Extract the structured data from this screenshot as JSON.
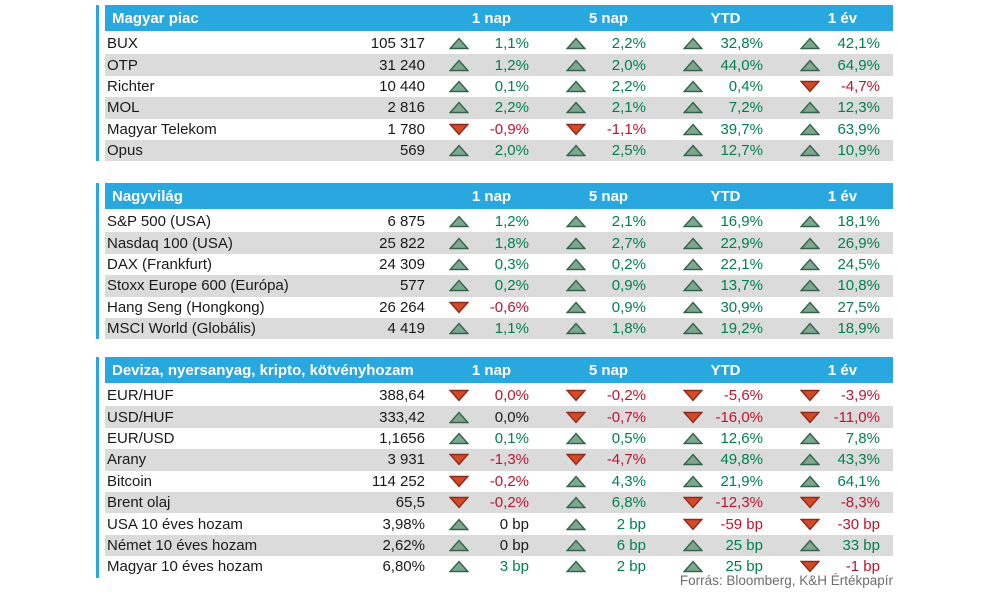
{
  "columns": [
    "1 nap",
    "5 nap",
    "YTD",
    "1 év"
  ],
  "footer": {
    "source": "Forrás: Bloomberg, K&H Értékpapír"
  },
  "colors": {
    "header_bg": "#29A8DF",
    "row_alt_bg": "#DBDBDB",
    "text": "#1A1A1A",
    "positive": "#00814F",
    "negative": "#C2122E",
    "neutral": "#1A1A1A",
    "up_arrow_fill": "#7FA78F",
    "up_arrow_stroke": "#34654C",
    "down_arrow_fill": "#D14B28",
    "down_arrow_stroke": "#93291A"
  },
  "sections": [
    {
      "title": "Magyar piac",
      "rows": [
        {
          "name": "BUX",
          "value": "105 317",
          "changes": [
            {
              "dir": "up",
              "text": "1,1%",
              "tone": "positive"
            },
            {
              "dir": "up",
              "text": "2,2%",
              "tone": "positive"
            },
            {
              "dir": "up",
              "text": "32,8%",
              "tone": "positive"
            },
            {
              "dir": "up",
              "text": "42,1%",
              "tone": "positive"
            }
          ]
        },
        {
          "name": "OTP",
          "value": "31 240",
          "changes": [
            {
              "dir": "up",
              "text": "1,2%",
              "tone": "positive"
            },
            {
              "dir": "up",
              "text": "2,0%",
              "tone": "positive"
            },
            {
              "dir": "up",
              "text": "44,0%",
              "tone": "positive"
            },
            {
              "dir": "up",
              "text": "64,9%",
              "tone": "positive"
            }
          ]
        },
        {
          "name": "Richter",
          "value": "10 440",
          "changes": [
            {
              "dir": "up",
              "text": "0,1%",
              "tone": "positive"
            },
            {
              "dir": "up",
              "text": "2,2%",
              "tone": "positive"
            },
            {
              "dir": "up",
              "text": "0,4%",
              "tone": "positive"
            },
            {
              "dir": "down",
              "text": "-4,7%",
              "tone": "negative"
            }
          ]
        },
        {
          "name": "MOL",
          "value": "2 816",
          "changes": [
            {
              "dir": "up",
              "text": "2,2%",
              "tone": "positive"
            },
            {
              "dir": "up",
              "text": "2,1%",
              "tone": "positive"
            },
            {
              "dir": "up",
              "text": "7,2%",
              "tone": "positive"
            },
            {
              "dir": "up",
              "text": "12,3%",
              "tone": "positive"
            }
          ]
        },
        {
          "name": "Magyar Telekom",
          "value": "1 780",
          "changes": [
            {
              "dir": "down",
              "text": "-0,9%",
              "tone": "negative"
            },
            {
              "dir": "down",
              "text": "-1,1%",
              "tone": "negative"
            },
            {
              "dir": "up",
              "text": "39,7%",
              "tone": "positive"
            },
            {
              "dir": "up",
              "text": "63,9%",
              "tone": "positive"
            }
          ]
        },
        {
          "name": "Opus",
          "value": "569",
          "changes": [
            {
              "dir": "up",
              "text": "2,0%",
              "tone": "positive"
            },
            {
              "dir": "up",
              "text": "2,5%",
              "tone": "positive"
            },
            {
              "dir": "up",
              "text": "12,7%",
              "tone": "positive"
            },
            {
              "dir": "up",
              "text": "10,9%",
              "tone": "positive"
            }
          ]
        }
      ]
    },
    {
      "title": "Nagyvilág",
      "rows": [
        {
          "name": "S&P 500 (USA)",
          "value": "6 875",
          "changes": [
            {
              "dir": "up",
              "text": "1,2%",
              "tone": "positive"
            },
            {
              "dir": "up",
              "text": "2,1%",
              "tone": "positive"
            },
            {
              "dir": "up",
              "text": "16,9%",
              "tone": "positive"
            },
            {
              "dir": "up",
              "text": "18,1%",
              "tone": "positive"
            }
          ]
        },
        {
          "name": "Nasdaq 100 (USA)",
          "value": "25 822",
          "changes": [
            {
              "dir": "up",
              "text": "1,8%",
              "tone": "positive"
            },
            {
              "dir": "up",
              "text": "2,7%",
              "tone": "positive"
            },
            {
              "dir": "up",
              "text": "22,9%",
              "tone": "positive"
            },
            {
              "dir": "up",
              "text": "26,9%",
              "tone": "positive"
            }
          ]
        },
        {
          "name": "DAX (Frankfurt)",
          "value": "24 309",
          "changes": [
            {
              "dir": "up",
              "text": "0,3%",
              "tone": "positive"
            },
            {
              "dir": "up",
              "text": "0,2%",
              "tone": "positive"
            },
            {
              "dir": "up",
              "text": "22,1%",
              "tone": "positive"
            },
            {
              "dir": "up",
              "text": "24,5%",
              "tone": "positive"
            }
          ]
        },
        {
          "name": "Stoxx Europe 600 (Európa)",
          "value": "577",
          "changes": [
            {
              "dir": "up",
              "text": "0,2%",
              "tone": "positive"
            },
            {
              "dir": "up",
              "text": "0,9%",
              "tone": "positive"
            },
            {
              "dir": "up",
              "text": "13,7%",
              "tone": "positive"
            },
            {
              "dir": "up",
              "text": "10,8%",
              "tone": "positive"
            }
          ]
        },
        {
          "name": "Hang Seng (Hongkong)",
          "value": "26 264",
          "changes": [
            {
              "dir": "down",
              "text": "-0,6%",
              "tone": "negative"
            },
            {
              "dir": "up",
              "text": "0,9%",
              "tone": "positive"
            },
            {
              "dir": "up",
              "text": "30,9%",
              "tone": "positive"
            },
            {
              "dir": "up",
              "text": "27,5%",
              "tone": "positive"
            }
          ]
        },
        {
          "name": "MSCI World (Globális)",
          "value": "4 419",
          "changes": [
            {
              "dir": "up",
              "text": "1,1%",
              "tone": "positive"
            },
            {
              "dir": "up",
              "text": "1,8%",
              "tone": "positive"
            },
            {
              "dir": "up",
              "text": "19,2%",
              "tone": "positive"
            },
            {
              "dir": "up",
              "text": "18,9%",
              "tone": "positive"
            }
          ]
        }
      ]
    },
    {
      "title": "Deviza, nyersanyag, kripto, kötvényhozam",
      "rows": [
        {
          "name": "EUR/HUF",
          "value": "388,64",
          "changes": [
            {
              "dir": "down",
              "text": "0,0%",
              "tone": "negative"
            },
            {
              "dir": "down",
              "text": "-0,2%",
              "tone": "negative"
            },
            {
              "dir": "down",
              "text": "-5,6%",
              "tone": "negative"
            },
            {
              "dir": "down",
              "text": "-3,9%",
              "tone": "negative"
            }
          ]
        },
        {
          "name": "USD/HUF",
          "value": "333,42",
          "changes": [
            {
              "dir": "up",
              "text": "0,0%",
              "tone": "neutral"
            },
            {
              "dir": "down",
              "text": "-0,7%",
              "tone": "negative"
            },
            {
              "dir": "down",
              "text": "-16,0%",
              "tone": "negative"
            },
            {
              "dir": "down",
              "text": "-11,0%",
              "tone": "negative"
            }
          ]
        },
        {
          "name": "EUR/USD",
          "value": "1,1656",
          "changes": [
            {
              "dir": "up",
              "text": "0,1%",
              "tone": "positive"
            },
            {
              "dir": "up",
              "text": "0,5%",
              "tone": "positive"
            },
            {
              "dir": "up",
              "text": "12,6%",
              "tone": "positive"
            },
            {
              "dir": "up",
              "text": "7,8%",
              "tone": "positive"
            }
          ]
        },
        {
          "name": "Arany",
          "value": "3 931",
          "changes": [
            {
              "dir": "down",
              "text": "-1,3%",
              "tone": "negative"
            },
            {
              "dir": "down",
              "text": "-4,7%",
              "tone": "negative"
            },
            {
              "dir": "up",
              "text": "49,8%",
              "tone": "positive"
            },
            {
              "dir": "up",
              "text": "43,3%",
              "tone": "positive"
            }
          ]
        },
        {
          "name": "Bitcoin",
          "value": "114 252",
          "changes": [
            {
              "dir": "down",
              "text": "-0,2%",
              "tone": "negative"
            },
            {
              "dir": "up",
              "text": "4,3%",
              "tone": "positive"
            },
            {
              "dir": "up",
              "text": "21,9%",
              "tone": "positive"
            },
            {
              "dir": "up",
              "text": "64,1%",
              "tone": "positive"
            }
          ]
        },
        {
          "name": "Brent olaj",
          "value": "65,5",
          "changes": [
            {
              "dir": "down",
              "text": "-0,2%",
              "tone": "negative"
            },
            {
              "dir": "up",
              "text": "6,8%",
              "tone": "positive"
            },
            {
              "dir": "down",
              "text": "-12,3%",
              "tone": "negative"
            },
            {
              "dir": "down",
              "text": "-8,3%",
              "tone": "negative"
            }
          ]
        },
        {
          "name": "USA 10 éves hozam",
          "value": "3,98%",
          "changes": [
            {
              "dir": "up",
              "text": "0 bp",
              "tone": "neutral"
            },
            {
              "dir": "up",
              "text": "2 bp",
              "tone": "positive"
            },
            {
              "dir": "down",
              "text": "-59 bp",
              "tone": "negative"
            },
            {
              "dir": "down",
              "text": "-30 bp",
              "tone": "negative"
            }
          ]
        },
        {
          "name": "Német 10 éves hozam",
          "value": "2,62%",
          "changes": [
            {
              "dir": "up",
              "text": "0 bp",
              "tone": "neutral"
            },
            {
              "dir": "up",
              "text": "6 bp",
              "tone": "positive"
            },
            {
              "dir": "up",
              "text": "25 bp",
              "tone": "positive"
            },
            {
              "dir": "up",
              "text": "33 bp",
              "tone": "positive"
            }
          ]
        },
        {
          "name": "Magyar 10 éves hozam",
          "value": "6,80%",
          "changes": [
            {
              "dir": "up",
              "text": "3 bp",
              "tone": "positive"
            },
            {
              "dir": "up",
              "text": "2 bp",
              "tone": "positive"
            },
            {
              "dir": "up",
              "text": "25 bp",
              "tone": "positive"
            },
            {
              "dir": "down",
              "text": "-1 bp",
              "tone": "negative"
            }
          ]
        }
      ]
    }
  ]
}
